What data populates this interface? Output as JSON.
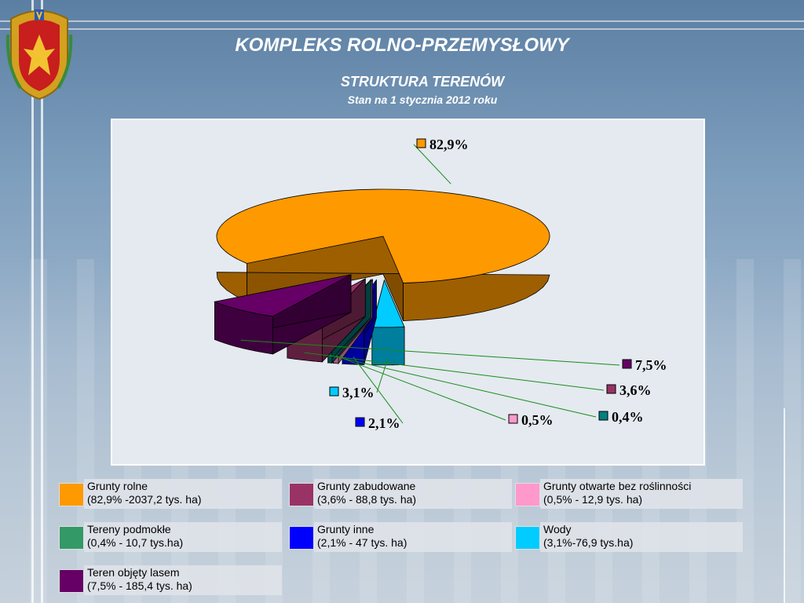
{
  "header": {
    "title": "KOMPLEKS ROLNO-PRZEMYSŁOWY",
    "subtitle": "STRUKTURA TERENÓW",
    "date_line": "Stan na 1 stycznia 2012 roku"
  },
  "chart_data": {
    "type": "pie",
    "style": "3d-exploded",
    "title": "",
    "slices": [
      {
        "label": "82,9%",
        "value": 82.9,
        "color": "#ff9900"
      },
      {
        "label": "7,5%",
        "value": 7.5,
        "color": "#660066"
      },
      {
        "label": "3,6%",
        "value": 3.6,
        "color": "#993366"
      },
      {
        "label": "0,4%",
        "value": 0.4,
        "color": "#008080"
      },
      {
        "label": "0,5%",
        "value": 0.5,
        "color": "#ff99cc"
      },
      {
        "label": "2,1%",
        "value": 2.1,
        "color": "#0000ff"
      },
      {
        "label": "3,1%",
        "value": 3.1,
        "color": "#00ccff"
      }
    ]
  },
  "legend": [
    {
      "name": "Grunty rolne",
      "detail": "(82,9% -2037,2 tys. ha)",
      "color": "#ff9900"
    },
    {
      "name": "Grunty zabudowane",
      "detail": "(3,6% - 88,8 tys. ha)",
      "color": "#993366"
    },
    {
      "name": "Grunty otwarte bez roślinności",
      "detail": "(0,5% - 12,9 tys. ha)",
      "color": "#ff99cc"
    },
    {
      "name": "Tereny podmokłe",
      "detail": "(0,4% - 10,7 tys.ha)",
      "color": "#339966"
    },
    {
      "name": "Grunty inne",
      "detail": "(2,1% - 47 tys. ha)",
      "color": "#0000ff"
    },
    {
      "name": "Wody",
      "detail": "(3,1%-76,9 tys.ha)",
      "color": "#00ccff"
    },
    {
      "name": "Teren objęty lasem",
      "detail": "(7,5% - 185,4 tys. ha)",
      "color": "#660066"
    }
  ]
}
